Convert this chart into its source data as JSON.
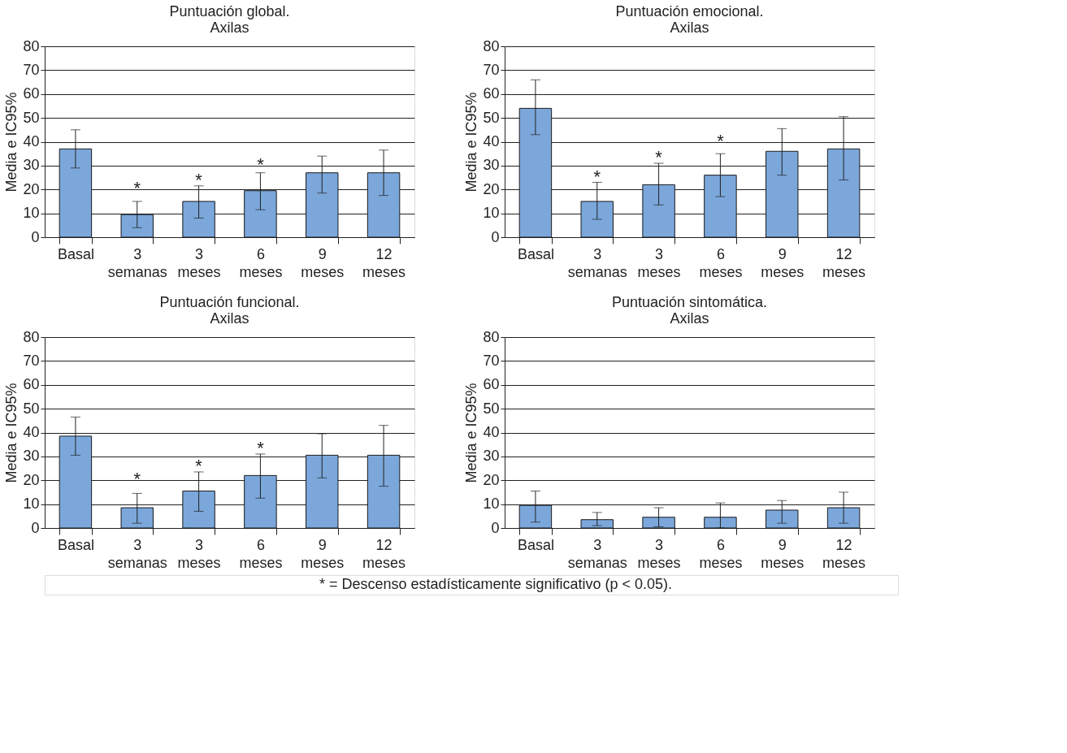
{
  "chart_data": [
    {
      "type": "bar",
      "title": "Puntuación global.\nAxilas",
      "ylabel": "Media e IC95%",
      "categories": [
        "Basal",
        "3 semanas",
        "3 meses",
        "6 meses",
        "9 meses",
        "12 meses"
      ],
      "color": "#7ba7db",
      "values": [
        37,
        9.5,
        15,
        19.5,
        27,
        27
      ],
      "errors": [
        [
          29,
          45
        ],
        [
          4,
          15
        ],
        [
          8,
          21.5
        ],
        [
          11.5,
          27
        ],
        [
          18.5,
          34
        ],
        [
          17.5,
          36.5
        ]
      ],
      "ylim": [
        0,
        80
      ],
      "yticks": [
        0,
        10,
        20,
        30,
        40,
        50,
        60,
        70,
        80
      ],
      "grid": "y",
      "value_labels": [
        null,
        "*",
        "*",
        "*",
        null,
        null
      ]
    },
    {
      "type": "bar",
      "title": "Puntuación emocional.\nAxilas",
      "ylabel": "Media e IC95%",
      "categories": [
        "Basal",
        "3 semanas",
        "3 meses",
        "6 meses",
        "9 meses",
        "12 meses"
      ],
      "color": "#7ba7db",
      "values": [
        54,
        15,
        22,
        26,
        36,
        37
      ],
      "errors": [
        [
          43,
          66
        ],
        [
          7.5,
          23
        ],
        [
          13.5,
          31
        ],
        [
          17,
          35
        ],
        [
          26,
          45.5
        ],
        [
          24,
          50.5
        ]
      ],
      "ylim": [
        0,
        80
      ],
      "yticks": [
        0,
        10,
        20,
        30,
        40,
        50,
        60,
        70,
        80
      ],
      "grid": "y",
      "value_labels": [
        null,
        "*",
        "*",
        "*",
        null,
        null
      ]
    },
    {
      "type": "bar",
      "title": "Puntuación funcional.\nAxilas",
      "ylabel": "Media e IC95%",
      "categories": [
        "Basal",
        "3 semanas",
        "3 meses",
        "6 meses",
        "9 meses",
        "12 meses"
      ],
      "color": "#7ba7db",
      "values": [
        38.5,
        8.5,
        15.5,
        22,
        30.5,
        30.5
      ],
      "errors": [
        [
          30.5,
          46.5
        ],
        [
          2,
          14.5
        ],
        [
          7,
          23.5
        ],
        [
          12.5,
          31
        ],
        [
          21,
          39.5
        ],
        [
          17.5,
          43
        ]
      ],
      "ylim": [
        0,
        80
      ],
      "yticks": [
        0,
        10,
        20,
        30,
        40,
        50,
        60,
        70,
        80
      ],
      "grid": "y",
      "value_labels": [
        null,
        "*",
        "*",
        "*",
        null,
        null
      ]
    },
    {
      "type": "bar",
      "title": "Puntuación sintomática.\nAxilas",
      "ylabel": "Media e IC95%",
      "categories": [
        "Basal",
        "3 semanas",
        "3 meses",
        "6 meses",
        "9 meses",
        "12 meses"
      ],
      "color": "#7ba7db",
      "values": [
        9.5,
        3.5,
        4.5,
        4.5,
        7.5,
        8.5
      ],
      "errors": [
        [
          2.5,
          15.5
        ],
        [
          1,
          6.5
        ],
        [
          0.5,
          8.5
        ],
        [
          0,
          10.5
        ],
        [
          2,
          11.5
        ],
        [
          2,
          15
        ]
      ],
      "ylim": [
        0,
        80
      ],
      "yticks": [
        0,
        10,
        20,
        30,
        40,
        50,
        60,
        70,
        80
      ],
      "grid": "y",
      "annotations": [
        "* = Descenso estadísticamente significativo (p < 0.05)."
      ]
    }
  ]
}
